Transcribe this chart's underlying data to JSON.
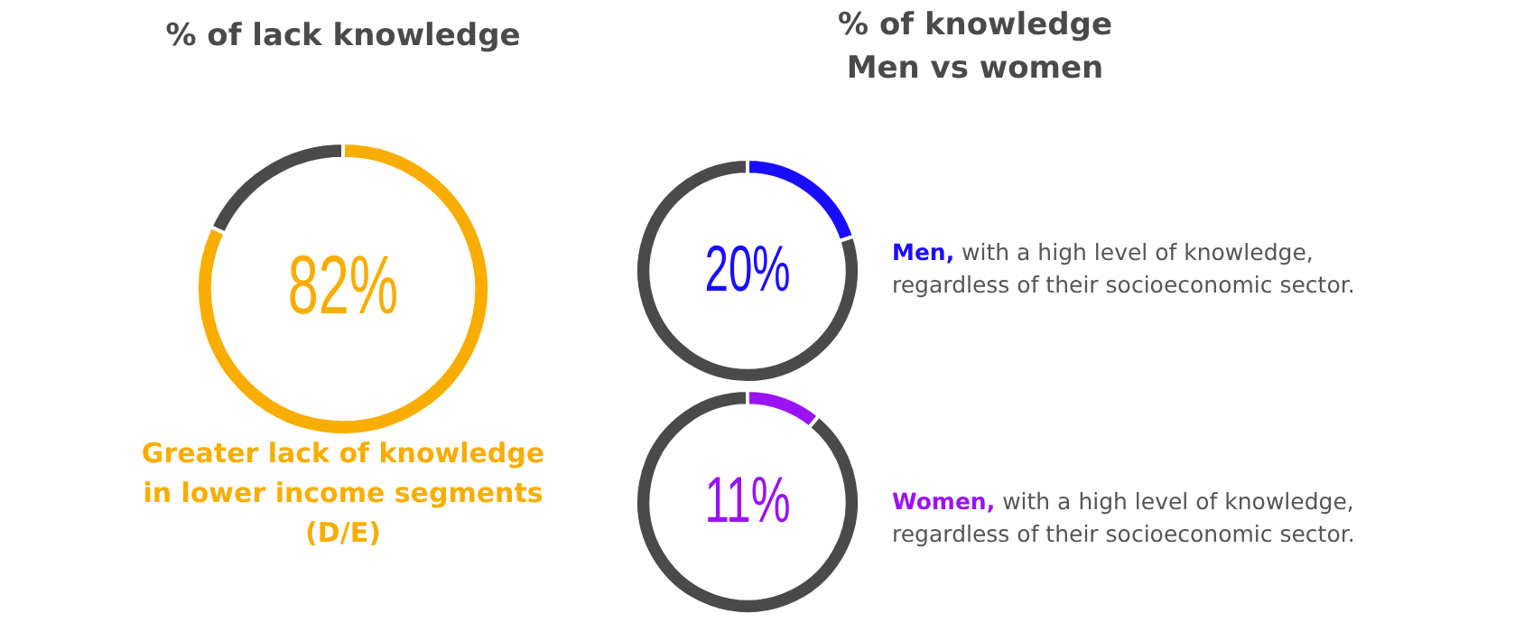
{
  "chart_data": [
    {
      "type": "donut",
      "title": "% of lack knowledge",
      "categories": [
        null,
        null
      ],
      "values": [
        82,
        18
      ],
      "colors": [
        "#f9ad00",
        "#4a4a4a"
      ],
      "value_labels": [
        "82%",
        null
      ],
      "annotations": [
        "Greater lack of knowledge in lower income segments (D/E)"
      ]
    },
    {
      "type": "donut",
      "title": "% of knowledge",
      "subtitle": "Men vs women",
      "categories": [
        null,
        null
      ],
      "values": [
        20,
        80
      ],
      "colors": [
        "#1a0dff",
        "#4a4a4a"
      ],
      "value_labels": [
        "20%",
        null
      ],
      "annotations": [
        "Men,",
        "with a high level of knowledge, regardless of their socioeconomic sector."
      ]
    },
    {
      "type": "donut",
      "categories": [
        null,
        null
      ],
      "values": [
        11,
        89
      ],
      "colors": [
        "#9b12f5",
        "#4a4a4a"
      ],
      "value_labels": [
        "11%",
        null
      ],
      "annotations": [
        "Women,",
        "with a high level of knowledge, regardless of their socioeconomic sector."
      ]
    }
  ]
}
